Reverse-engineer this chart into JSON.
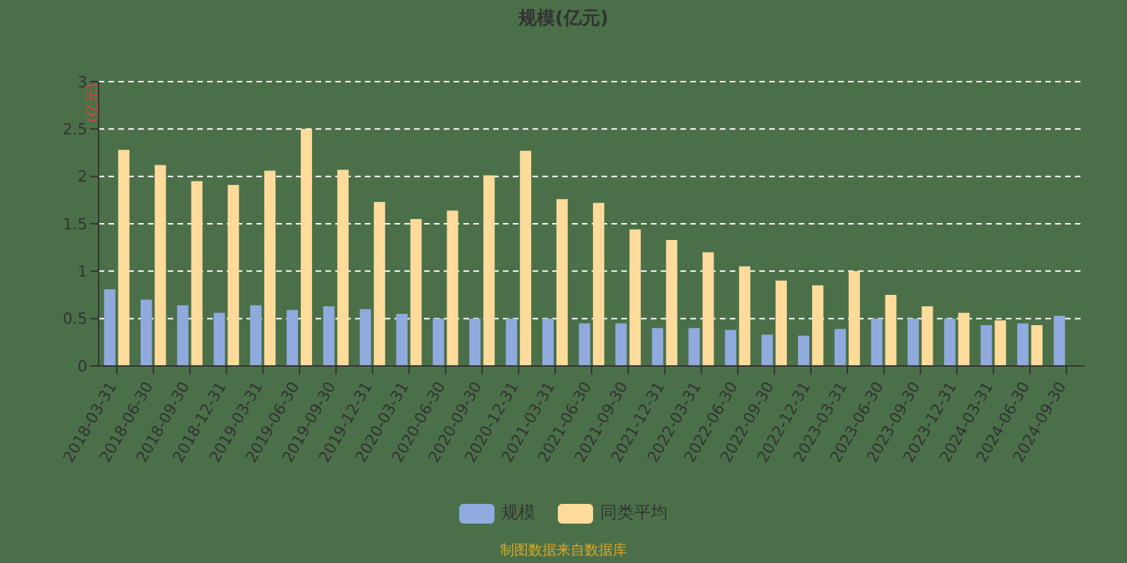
{
  "chart_data": {
    "type": "bar",
    "title": "规模(亿元)",
    "ylabel": "(亿元)",
    "categories": [
      "2018-03-31",
      "2018-06-30",
      "2018-09-30",
      "2018-12-31",
      "2019-03-31",
      "2019-06-30",
      "2019-09-30",
      "2019-12-31",
      "2020-03-31",
      "2020-06-30",
      "2020-09-30",
      "2020-12-31",
      "2021-03-31",
      "2021-06-30",
      "2021-09-30",
      "2021-12-31",
      "2022-03-31",
      "2022-06-30",
      "2022-09-30",
      "2022-12-31",
      "2023-03-31",
      "2023-06-30",
      "2023-09-30",
      "2023-12-31",
      "2024-03-31",
      "2024-06-30",
      "2024-09-30"
    ],
    "series": [
      {
        "name": "规模",
        "color": "#91aade",
        "values": [
          0.81,
          0.7,
          0.64,
          0.56,
          0.64,
          0.59,
          0.63,
          0.6,
          0.55,
          0.5,
          0.5,
          0.5,
          0.5,
          0.45,
          0.45,
          0.4,
          0.4,
          0.38,
          0.33,
          0.32,
          0.39,
          0.5,
          0.5,
          0.5,
          0.43,
          0.45,
          0.53
        ]
      },
      {
        "name": "同类平均",
        "color": "#fedb9b",
        "values": [
          2.28,
          2.12,
          1.95,
          1.91,
          2.06,
          2.5,
          2.07,
          1.73,
          1.55,
          1.64,
          2.01,
          2.27,
          1.76,
          1.72,
          1.44,
          1.33,
          1.2,
          1.05,
          0.9,
          0.85,
          1.0,
          0.75,
          0.63,
          0.56,
          0.48,
          0.43,
          null
        ]
      }
    ],
    "ylim": [
      0,
      3
    ],
    "yticks": [
      0,
      0.5,
      1,
      1.5,
      2,
      2.5,
      3
    ],
    "grid": "y",
    "legend": "bottom",
    "annotations": [
      "制图数据来自数据库"
    ]
  }
}
